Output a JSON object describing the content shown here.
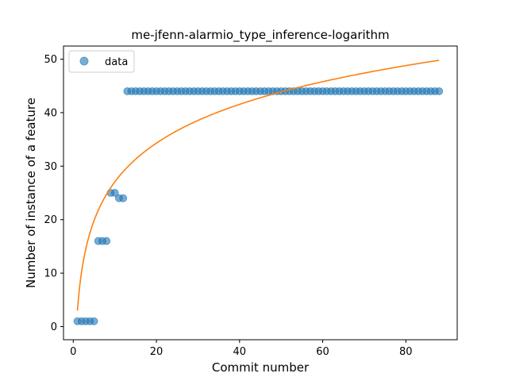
{
  "chart_data": {
    "type": "scatter",
    "title": "me-jfenn-alarmio_type_inference-logarithm",
    "xlabel": "Commit number",
    "ylabel": "Number of instance of a feature",
    "xlim": [
      -2.35,
      92.35
    ],
    "ylim": [
      -2.45,
      52.45
    ],
    "xticks": [
      0,
      20,
      40,
      60,
      80
    ],
    "yticks": [
      0,
      10,
      20,
      30,
      40,
      50
    ],
    "grid": false,
    "legend_position": "top-left",
    "series": [
      {
        "name": "data",
        "kind": "scatter",
        "color": "#1f77b4",
        "x": [
          1,
          2,
          3,
          4,
          5,
          6,
          7,
          8,
          9,
          10,
          11,
          12,
          13,
          14,
          15,
          16,
          17,
          18,
          19,
          20,
          21,
          22,
          23,
          24,
          25,
          26,
          27,
          28,
          29,
          30,
          31,
          32,
          33,
          34,
          35,
          36,
          37,
          38,
          39,
          40,
          41,
          42,
          43,
          44,
          45,
          46,
          47,
          48,
          49,
          50,
          51,
          52,
          53,
          54,
          55,
          56,
          57,
          58,
          59,
          60,
          61,
          62,
          63,
          64,
          65,
          66,
          67,
          68,
          69,
          70,
          71,
          72,
          73,
          74,
          75,
          76,
          77,
          78,
          79,
          80,
          81,
          82,
          83,
          84,
          85,
          86,
          87,
          88
        ],
        "y": [
          1,
          1,
          1,
          1,
          1,
          16,
          16,
          16,
          25,
          25,
          24,
          24,
          44,
          44,
          44,
          44,
          44,
          44,
          44,
          44,
          44,
          44,
          44,
          44,
          44,
          44,
          44,
          44,
          44,
          44,
          44,
          44,
          44,
          44,
          44,
          44,
          44,
          44,
          44,
          44,
          44,
          44,
          44,
          44,
          44,
          44,
          44,
          44,
          44,
          44,
          44,
          44,
          44,
          44,
          44,
          44,
          44,
          44,
          44,
          44,
          44,
          44,
          44,
          44,
          44,
          44,
          44,
          44,
          44,
          44,
          44,
          44,
          44,
          44,
          44,
          44,
          44,
          44,
          44,
          44,
          44,
          44,
          44,
          44,
          44,
          44,
          44,
          44
        ]
      },
      {
        "kind": "line",
        "color": "#ff7f0e",
        "model": "logarithmic",
        "a": 3.0,
        "b": 10.45,
        "x_range": [
          1,
          88
        ]
      }
    ]
  }
}
